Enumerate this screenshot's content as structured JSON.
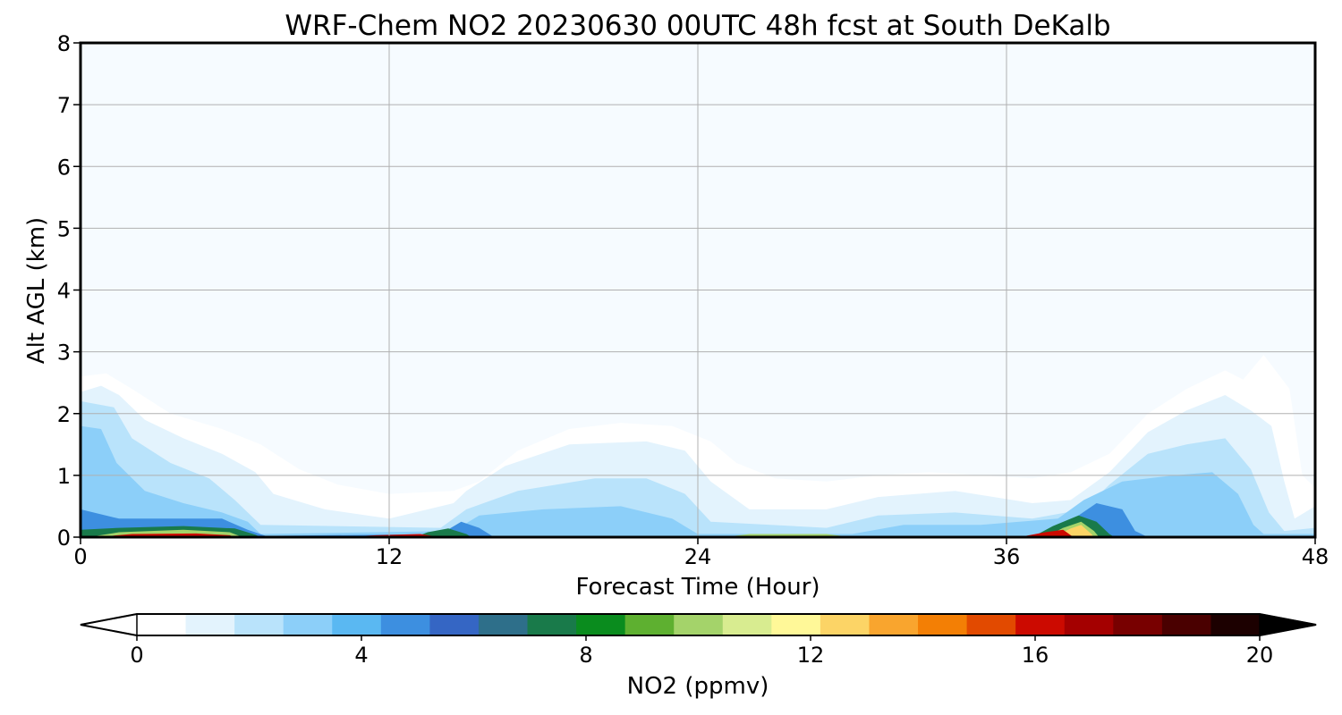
{
  "chart_data": {
    "type": "heatmap",
    "title": "WRF-Chem NO2  20230630 00UTC 48h fcst at South DeKalb",
    "xlabel": "Forecast Time (Hour)",
    "ylabel": "Alt AGL (km)",
    "xlim": [
      0,
      48
    ],
    "ylim": [
      0,
      8
    ],
    "xticks": [
      0,
      12,
      24,
      36,
      48
    ],
    "yticks": [
      0,
      1,
      2,
      3,
      4,
      5,
      6,
      7,
      8
    ],
    "grid": true,
    "colorbar": {
      "label": "NO2  (ppmv)",
      "orientation": "horizontal",
      "placement": "bottom",
      "range": [
        0,
        20
      ],
      "ticks": [
        0,
        4,
        8,
        12,
        16,
        20
      ],
      "extend": "both",
      "colors": [
        "#ffffff",
        "#e3f3fd",
        "#b9e3fb",
        "#8ccff9",
        "#5ab8f2",
        "#3d8fe0",
        "#3566c4",
        "#2e6f8a",
        "#197a4a",
        "#0a8c1e",
        "#5eb030",
        "#a4d36a",
        "#d8ec90",
        "#fff898",
        "#fcd466",
        "#f9a52e",
        "#f37f05",
        "#e24a00",
        "#cc0a00",
        "#a40000",
        "#780000",
        "#4a0000",
        "#1c0000"
      ]
    },
    "fields": [
      {
        "name": "background",
        "value": 0.1,
        "points": [
          [
            0,
            0
          ],
          [
            48,
            0
          ],
          [
            48,
            8
          ],
          [
            0,
            8
          ]
        ]
      },
      {
        "name": "plume-1",
        "value": 0.5,
        "points": [
          [
            0,
            0
          ],
          [
            0,
            2.6
          ],
          [
            1.0,
            2.65
          ],
          [
            2.0,
            2.4
          ],
          [
            3.5,
            2.0
          ],
          [
            5.5,
            1.75
          ],
          [
            7.0,
            1.5
          ],
          [
            8.5,
            1.1
          ],
          [
            10.0,
            0.85
          ],
          [
            12.0,
            0.7
          ],
          [
            14.5,
            0.75
          ],
          [
            15.5,
            0.9
          ],
          [
            17.0,
            1.4
          ],
          [
            19.0,
            1.75
          ],
          [
            21.0,
            1.85
          ],
          [
            23.0,
            1.8
          ],
          [
            24.5,
            1.55
          ],
          [
            25.5,
            1.2
          ],
          [
            27.0,
            0.95
          ],
          [
            29.0,
            0.9
          ],
          [
            31.0,
            1.0
          ],
          [
            33.0,
            1.05
          ],
          [
            35.0,
            1.0
          ],
          [
            37.0,
            0.95
          ],
          [
            38.5,
            1.05
          ],
          [
            40.0,
            1.35
          ],
          [
            41.5,
            2.0
          ],
          [
            43.0,
            2.4
          ],
          [
            44.5,
            2.7
          ],
          [
            45.2,
            2.55
          ],
          [
            46.0,
            2.95
          ],
          [
            47.0,
            2.4
          ],
          [
            47.5,
            1.0
          ],
          [
            48,
            0.8
          ],
          [
            48,
            0
          ]
        ]
      },
      {
        "name": "plume-2",
        "value": 1.2,
        "points": [
          [
            0,
            0
          ],
          [
            0,
            2.35
          ],
          [
            0.8,
            2.45
          ],
          [
            1.5,
            2.3
          ],
          [
            2.5,
            1.9
          ],
          [
            4.0,
            1.6
          ],
          [
            5.5,
            1.35
          ],
          [
            6.8,
            1.05
          ],
          [
            7.5,
            0.7
          ],
          [
            9.5,
            0.45
          ],
          [
            12.0,
            0.3
          ],
          [
            14.5,
            0.55
          ],
          [
            15.0,
            0.75
          ],
          [
            16.5,
            1.15
          ],
          [
            19.0,
            1.5
          ],
          [
            22.0,
            1.55
          ],
          [
            23.5,
            1.4
          ],
          [
            24.5,
            0.9
          ],
          [
            26.0,
            0.45
          ],
          [
            29.0,
            0.45
          ],
          [
            31.0,
            0.65
          ],
          [
            34.0,
            0.75
          ],
          [
            37.0,
            0.55
          ],
          [
            38.5,
            0.6
          ],
          [
            40.0,
            1.05
          ],
          [
            41.5,
            1.7
          ],
          [
            43.0,
            2.05
          ],
          [
            44.5,
            2.3
          ],
          [
            45.5,
            2.05
          ],
          [
            46.3,
            1.8
          ],
          [
            46.8,
            0.9
          ],
          [
            47.2,
            0.3
          ],
          [
            48,
            0.5
          ],
          [
            48,
            0
          ]
        ]
      },
      {
        "name": "plume-3",
        "value": 2.2,
        "points": [
          [
            0,
            0
          ],
          [
            0,
            2.2
          ],
          [
            1.3,
            2.1
          ],
          [
            2.0,
            1.6
          ],
          [
            3.5,
            1.2
          ],
          [
            5.0,
            0.95
          ],
          [
            6.0,
            0.6
          ],
          [
            7.0,
            0.2
          ],
          [
            14.0,
            0.15
          ],
          [
            15.0,
            0.45
          ],
          [
            17.0,
            0.75
          ],
          [
            20.0,
            0.95
          ],
          [
            22.0,
            0.95
          ],
          [
            23.5,
            0.7
          ],
          [
            24.5,
            0.25
          ],
          [
            29.0,
            0.15
          ],
          [
            31.0,
            0.35
          ],
          [
            34.0,
            0.4
          ],
          [
            37.0,
            0.3
          ],
          [
            39.0,
            0.45
          ],
          [
            40.0,
            0.85
          ],
          [
            41.5,
            1.35
          ],
          [
            43.0,
            1.5
          ],
          [
            44.5,
            1.6
          ],
          [
            45.5,
            1.1
          ],
          [
            46.2,
            0.4
          ],
          [
            46.8,
            0.1
          ],
          [
            48,
            0.15
          ],
          [
            48,
            0
          ]
        ]
      },
      {
        "name": "plume-4",
        "value": 3.0,
        "points": [
          [
            0,
            0
          ],
          [
            0,
            1.8
          ],
          [
            0.8,
            1.75
          ],
          [
            1.4,
            1.2
          ],
          [
            2.5,
            0.75
          ],
          [
            4.0,
            0.55
          ],
          [
            5.5,
            0.4
          ],
          [
            6.5,
            0.25
          ],
          [
            7.0,
            0.05
          ],
          [
            14.5,
            0.1
          ],
          [
            15.5,
            0.35
          ],
          [
            18.0,
            0.45
          ],
          [
            21.0,
            0.5
          ],
          [
            23.0,
            0.3
          ],
          [
            24.0,
            0.05
          ],
          [
            30.0,
            0.05
          ],
          [
            32.0,
            0.2
          ],
          [
            35.0,
            0.2
          ],
          [
            38.0,
            0.3
          ],
          [
            39.0,
            0.6
          ],
          [
            40.5,
            0.9
          ],
          [
            42.5,
            1.0
          ],
          [
            44.0,
            1.05
          ],
          [
            45.0,
            0.7
          ],
          [
            45.6,
            0.2
          ],
          [
            46.0,
            0.05
          ],
          [
            48,
            0.05
          ],
          [
            48,
            0
          ]
        ]
      },
      {
        "name": "plume-5",
        "value": 4.5,
        "points": [
          [
            0,
            0
          ],
          [
            0,
            0.45
          ],
          [
            1.5,
            0.3
          ],
          [
            3.5,
            0.3
          ],
          [
            5.5,
            0.3
          ],
          [
            6.5,
            0.12
          ],
          [
            7.2,
            0.02
          ],
          [
            14.0,
            0.05
          ],
          [
            14.8,
            0.25
          ],
          [
            15.5,
            0.15
          ],
          [
            16.0,
            0.02
          ],
          [
            38.0,
            0.02
          ],
          [
            38.8,
            0.35
          ],
          [
            39.5,
            0.55
          ],
          [
            40.5,
            0.45
          ],
          [
            41.0,
            0.1
          ],
          [
            41.5,
            0.0
          ]
        ]
      },
      {
        "name": "plume-6",
        "value": 7.5,
        "points": [
          [
            0,
            0
          ],
          [
            0,
            0.12
          ],
          [
            1.5,
            0.15
          ],
          [
            4.0,
            0.18
          ],
          [
            6.0,
            0.14
          ],
          [
            6.8,
            0.04
          ],
          [
            7.0,
            0.0
          ]
        ]
      },
      {
        "name": "plume-7",
        "value": 7.5,
        "points": [
          [
            13.0,
            0
          ],
          [
            13.5,
            0.08
          ],
          [
            14.3,
            0.14
          ],
          [
            15.0,
            0.05
          ],
          [
            15.2,
            0.0
          ]
        ]
      },
      {
        "name": "plume-8",
        "value": 7.5,
        "points": [
          [
            37.0,
            0
          ],
          [
            37.8,
            0.18
          ],
          [
            38.8,
            0.35
          ],
          [
            39.5,
            0.25
          ],
          [
            40.0,
            0.05
          ],
          [
            40.2,
            0.0
          ]
        ]
      },
      {
        "name": "plume-9",
        "value": 9.8,
        "points": [
          [
            0.3,
            0
          ],
          [
            1.5,
            0.08
          ],
          [
            4.0,
            0.12
          ],
          [
            5.8,
            0.08
          ],
          [
            6.3,
            0.0
          ]
        ]
      },
      {
        "name": "plume-10",
        "value": 9.8,
        "points": [
          [
            25.0,
            0
          ],
          [
            26.0,
            0.05
          ],
          [
            29.0,
            0.05
          ],
          [
            30.0,
            0.0
          ]
        ]
      },
      {
        "name": "plume-11",
        "value": 9.8,
        "points": [
          [
            37.5,
            0
          ],
          [
            38.2,
            0.15
          ],
          [
            38.9,
            0.25
          ],
          [
            39.4,
            0.1
          ],
          [
            39.6,
            0.0
          ]
        ]
      },
      {
        "name": "plume-12",
        "value": 13.0,
        "points": [
          [
            37.8,
            0
          ],
          [
            38.5,
            0.14
          ],
          [
            38.9,
            0.2
          ],
          [
            39.3,
            0.05
          ],
          [
            39.4,
            0.0
          ]
        ]
      },
      {
        "name": "plume-13",
        "value": 16.0,
        "points": [
          [
            0.6,
            0
          ],
          [
            2.0,
            0.05
          ],
          [
            4.5,
            0.06
          ],
          [
            5.8,
            0.03
          ],
          [
            6.0,
            0.0
          ]
        ]
      },
      {
        "name": "plume-14",
        "value": 16.0,
        "points": [
          [
            10.0,
            0
          ],
          [
            11.5,
            0.03
          ],
          [
            13.2,
            0.05
          ],
          [
            14.0,
            0.0
          ]
        ]
      },
      {
        "name": "plume-15",
        "value": 16.0,
        "points": [
          [
            36.5,
            0
          ],
          [
            37.5,
            0.08
          ],
          [
            38.2,
            0.12
          ],
          [
            38.6,
            0.0
          ]
        ]
      }
    ]
  }
}
